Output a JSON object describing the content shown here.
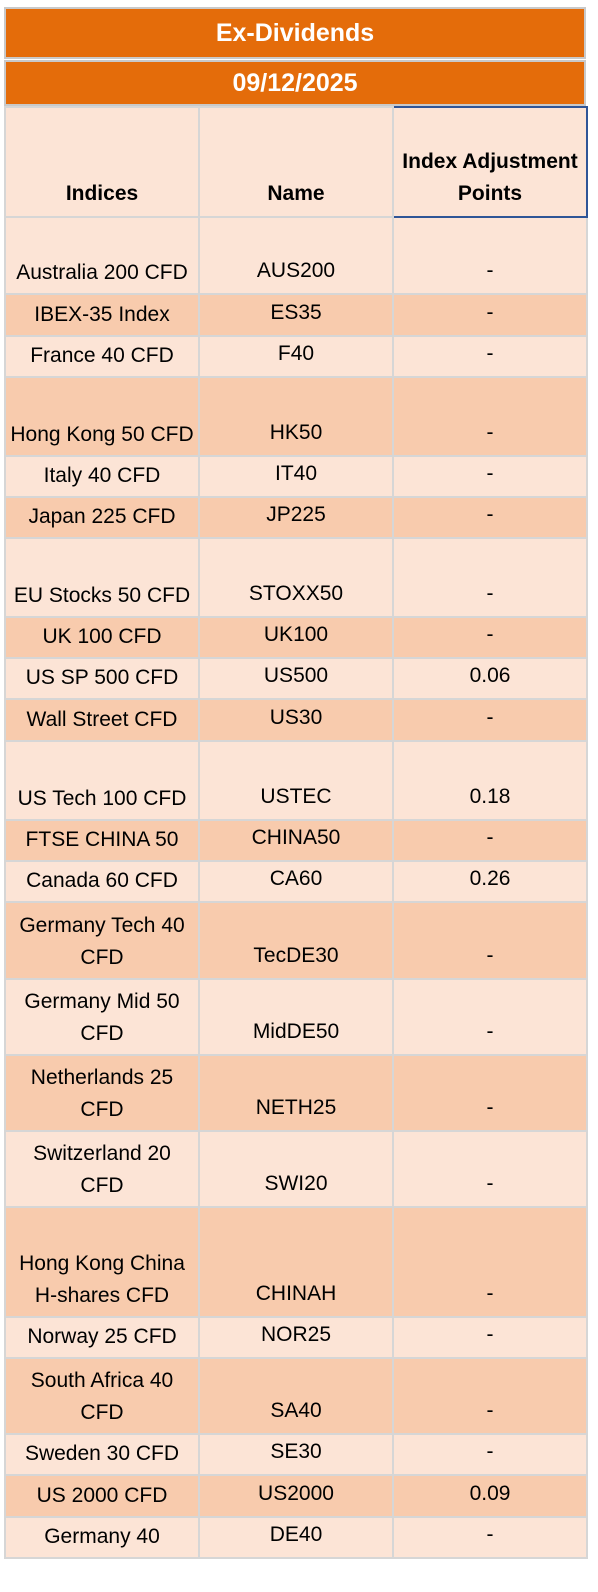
{
  "title": "Ex-Dividends",
  "date": "09/12/2025",
  "headers": {
    "indices": "Indices",
    "name": "Name",
    "adjustment": "Index Adjustment Points"
  },
  "rows": [
    {
      "index": "Australia 200 CFD",
      "name": "AUS200",
      "points": "-"
    },
    {
      "index": "IBEX-35 Index",
      "name": "ES35",
      "points": "-"
    },
    {
      "index": "France 40 CFD",
      "name": "F40",
      "points": "-"
    },
    {
      "index": "Hong Kong 50 CFD",
      "name": "HK50",
      "points": "-"
    },
    {
      "index": "Italy 40 CFD",
      "name": "IT40",
      "points": "-"
    },
    {
      "index": "Japan 225 CFD",
      "name": "JP225",
      "points": "-"
    },
    {
      "index": "EU Stocks 50 CFD",
      "name": "STOXX50",
      "points": "-"
    },
    {
      "index": "UK 100 CFD",
      "name": "UK100",
      "points": "-"
    },
    {
      "index": "US SP 500 CFD",
      "name": "US500",
      "points": "0.06"
    },
    {
      "index": "Wall Street CFD",
      "name": "US30",
      "points": "-"
    },
    {
      "index": "US Tech 100 CFD",
      "name": "USTEC",
      "points": "0.18"
    },
    {
      "index": "FTSE CHINA 50",
      "name": "CHINA50",
      "points": "-"
    },
    {
      "index": "Canada 60 CFD",
      "name": "CA60",
      "points": "0.26"
    },
    {
      "index": "Germany Tech 40 CFD",
      "name": "TecDE30",
      "points": "-"
    },
    {
      "index": "Germany Mid 50 CFD",
      "name": "MidDE50",
      "points": "-"
    },
    {
      "index": "Netherlands 25 CFD",
      "name": "NETH25",
      "points": "-"
    },
    {
      "index": "Switzerland 20 CFD",
      "name": "SWI20",
      "points": "-"
    },
    {
      "index": "Hong Kong China H-shares CFD",
      "name": "CHINAH",
      "points": "-"
    },
    {
      "index": "Norway 25 CFD",
      "name": "NOR25",
      "points": "-"
    },
    {
      "index": "South Africa 40 CFD",
      "name": "SA40",
      "points": "-"
    },
    {
      "index": "Sweden 30 CFD",
      "name": "SE30",
      "points": "-"
    },
    {
      "index": "US 2000 CFD",
      "name": "US2000",
      "points": "0.09"
    },
    {
      "index": "Germany 40",
      "name": "DE40",
      "points": "-"
    }
  ]
}
